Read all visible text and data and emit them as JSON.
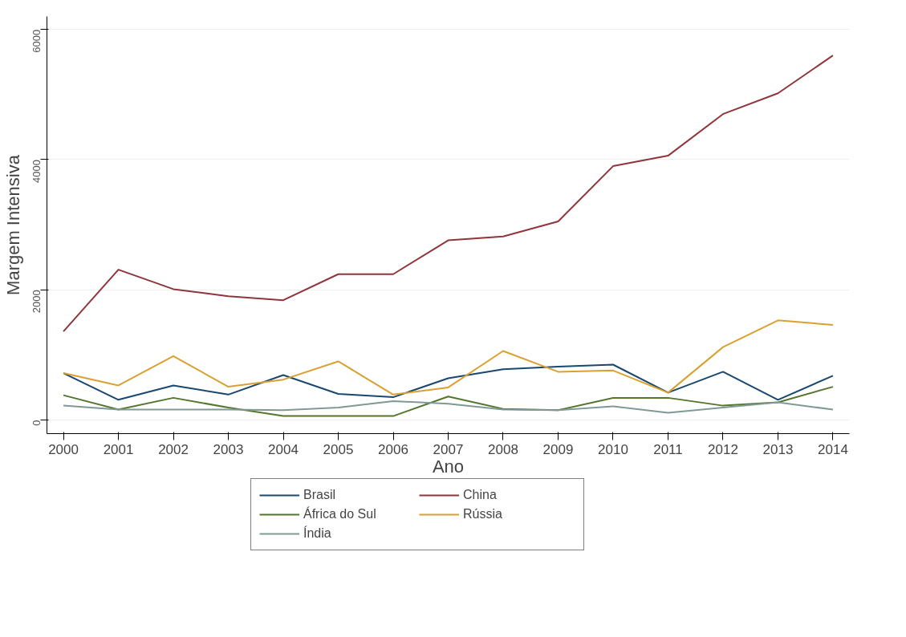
{
  "chart_data": {
    "type": "line",
    "xlabel": "Ano",
    "ylabel": "Margem Intensiva",
    "x": [
      2000,
      2001,
      2002,
      2003,
      2004,
      2005,
      2006,
      2007,
      2008,
      2009,
      2010,
      2011,
      2012,
      2013,
      2014
    ],
    "series": [
      {
        "name": "Brasil",
        "color": "#1a476f",
        "values": [
          720,
          310,
          530,
          390,
          690,
          400,
          350,
          640,
          780,
          820,
          850,
          420,
          740,
          310,
          680
        ]
      },
      {
        "name": "China",
        "color": "#90353b",
        "values": [
          1360,
          2310,
          2010,
          1900,
          1840,
          2240,
          2240,
          2760,
          2820,
          3050,
          3900,
          4060,
          4700,
          5020,
          5600
        ]
      },
      {
        "name": "África do Sul",
        "color": "#55752f",
        "values": [
          380,
          160,
          340,
          190,
          60,
          60,
          60,
          360,
          170,
          150,
          340,
          340,
          220,
          270,
          510
        ]
      },
      {
        "name": "Rússia",
        "color": "#d9a032",
        "values": [
          720,
          530,
          980,
          510,
          620,
          900,
          390,
          500,
          1060,
          740,
          760,
          420,
          1120,
          1530,
          1460
        ]
      },
      {
        "name": "Índia",
        "color": "#7f9a95",
        "values": [
          220,
          160,
          160,
          160,
          150,
          190,
          290,
          250,
          160,
          150,
          210,
          110,
          190,
          270,
          160
        ]
      }
    ],
    "xlim": [
      1999.7,
      2014.3
    ],
    "xticks": [
      2000,
      2001,
      2002,
      2003,
      2004,
      2005,
      2006,
      2007,
      2008,
      2009,
      2010,
      2011,
      2012,
      2013,
      2014
    ],
    "ylim": [
      -210,
      6200
    ],
    "yticks": [
      0,
      2000,
      4000,
      6000
    ],
    "grid": "y",
    "legend": "bottom",
    "marker": "none",
    "line_style": "solid"
  }
}
